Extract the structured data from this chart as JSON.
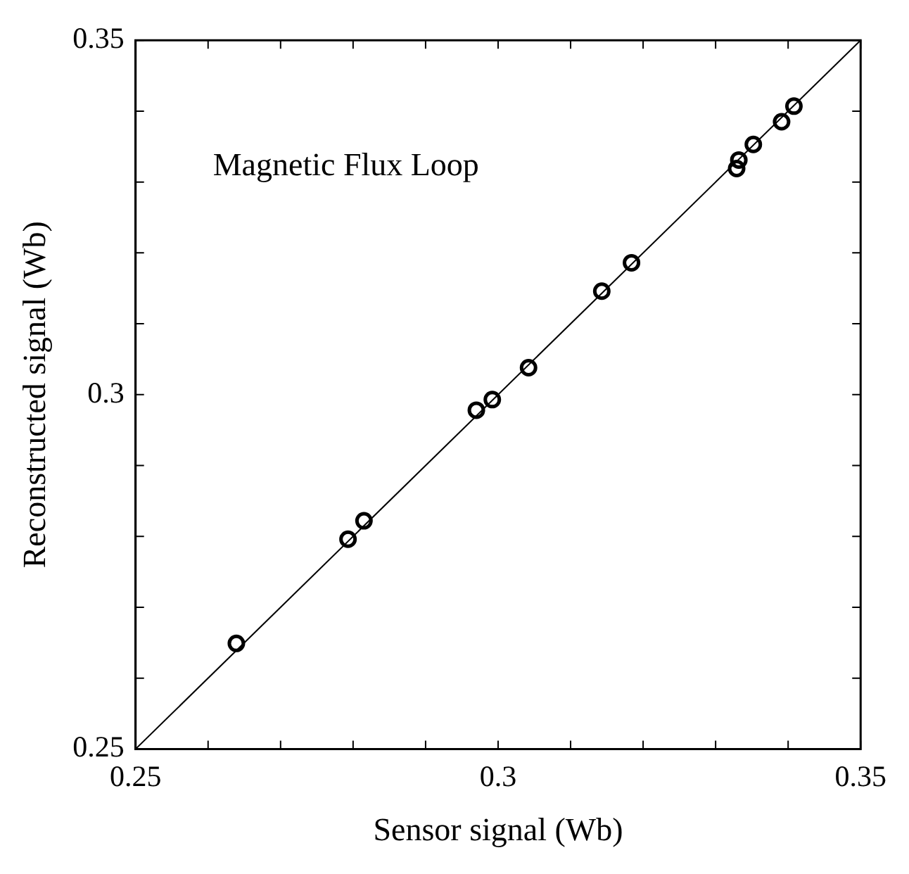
{
  "chart_data": {
    "type": "scatter",
    "xlabel": "Sensor signal (Wb)",
    "ylabel": "Reconstructed signal (Wb)",
    "annotations": [
      "Magnetic Flux Loop"
    ],
    "xlim": [
      0.25,
      0.35
    ],
    "ylim": [
      0.25,
      0.35
    ],
    "xticks": [
      0.25,
      {
        "value": 0.26,
        "label": null
      },
      {
        "value": 0.27,
        "label": null
      },
      {
        "value": 0.28,
        "label": null
      },
      {
        "value": 0.29,
        "label": null
      },
      0.3,
      {
        "value": 0.31,
        "label": null
      },
      {
        "value": 0.32,
        "label": null
      },
      {
        "value": 0.33,
        "label": null
      },
      {
        "value": 0.34,
        "label": null
      },
      0.35
    ],
    "yticks": [
      0.25,
      {
        "value": 0.26,
        "label": null
      },
      {
        "value": 0.27,
        "label": null
      },
      {
        "value": 0.28,
        "label": null
      },
      {
        "value": 0.29,
        "label": null
      },
      0.3,
      {
        "value": 0.31,
        "label": null
      },
      {
        "value": 0.32,
        "label": null
      },
      {
        "value": 0.33,
        "label": null
      },
      {
        "value": 0.34,
        "label": null
      },
      0.35
    ],
    "grid": false,
    "legend": false,
    "series": [
      {
        "type": "scatter",
        "color": "#000000",
        "marker": "circle",
        "x": [
          0.2639,
          0.2793,
          0.2815,
          0.297,
          0.2992,
          0.3042,
          0.3143,
          0.3184,
          0.3329,
          0.3332,
          0.3352,
          0.3391,
          0.3408
        ],
        "values": [
          0.2649,
          0.2796,
          0.2822,
          0.2978,
          0.2993,
          0.3038,
          0.3146,
          0.3186,
          0.3319,
          0.3331,
          0.3353,
          0.3385,
          0.3407
        ]
      },
      {
        "type": "line",
        "color": "#000000",
        "marker": "none",
        "line_style": "solid",
        "x": [
          0.25,
          0.35
        ],
        "values": [
          0.25,
          0.35
        ]
      }
    ]
  }
}
